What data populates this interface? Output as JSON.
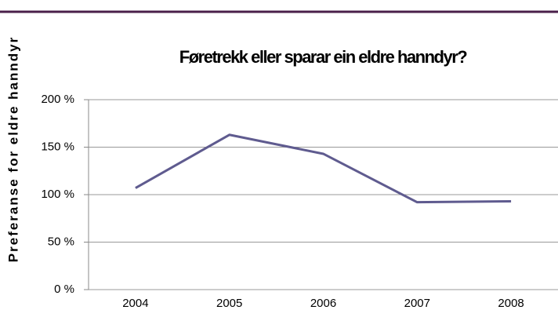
{
  "chart_data": {
    "type": "line",
    "title": "Føretrekk eller sparar ein eldre hanndyr?",
    "y_label": "Preferanse for eldre hanndyr",
    "categories": [
      "2004",
      "2005",
      "2006",
      "2007",
      "2008"
    ],
    "series": [
      {
        "name": "Preferanse for eldre hanndyr",
        "color": "#5f5b8f",
        "values": [
          107,
          163,
          143,
          92,
          93
        ]
      }
    ],
    "ylim": [
      0,
      200
    ],
    "yticks": [
      {
        "value": 0,
        "label": "0 %"
      },
      {
        "value": 50,
        "label": "50 %"
      },
      {
        "value": 100,
        "label": "100 %"
      },
      {
        "value": 150,
        "label": "150 %"
      },
      {
        "value": 200,
        "label": "200 %"
      }
    ],
    "grid": true
  }
}
